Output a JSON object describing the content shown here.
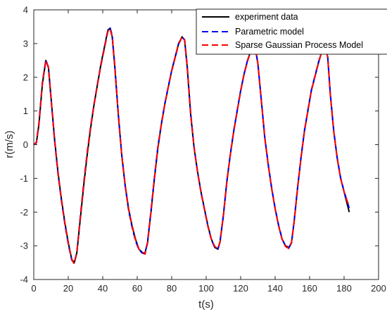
{
  "chart_data": {
    "type": "line",
    "title": "",
    "xlabel": "t(s)",
    "ylabel": "r(m/s)",
    "xlim": [
      0,
      200
    ],
    "ylim": [
      -4,
      4
    ],
    "xticks": [
      0,
      20,
      40,
      60,
      80,
      100,
      120,
      140,
      160,
      180,
      200
    ],
    "yticks": [
      -4,
      -3,
      -2,
      -1,
      0,
      1,
      2,
      3,
      4
    ],
    "grid": false,
    "legend_position": "top-right",
    "series": [
      {
        "name": "experiment data",
        "color": "#000000",
        "style": "solid",
        "points": [
          [
            0,
            0
          ],
          [
            1.5,
            0.05
          ],
          [
            3,
            0.6
          ],
          [
            5,
            1.8
          ],
          [
            7,
            2.5
          ],
          [
            8.5,
            2.3
          ],
          [
            10,
            1.4
          ],
          [
            12,
            0.2
          ],
          [
            14,
            -0.8
          ],
          [
            16,
            -1.6
          ],
          [
            18,
            -2.3
          ],
          [
            20,
            -2.9
          ],
          [
            22,
            -3.4
          ],
          [
            23.5,
            -3.5
          ],
          [
            25,
            -3.2
          ],
          [
            27,
            -2.2
          ],
          [
            29,
            -1.2
          ],
          [
            31,
            -0.3
          ],
          [
            33,
            0.5
          ],
          [
            35,
            1.2
          ],
          [
            37,
            1.8
          ],
          [
            39,
            2.4
          ],
          [
            41,
            2.9
          ],
          [
            43,
            3.4
          ],
          [
            44.2,
            3.45
          ],
          [
            45.5,
            3.2
          ],
          [
            47,
            2.3
          ],
          [
            49,
            0.9
          ],
          [
            51,
            -0.3
          ],
          [
            53,
            -1.2
          ],
          [
            55,
            -1.9
          ],
          [
            57,
            -2.4
          ],
          [
            59,
            -2.8
          ],
          [
            61,
            -3.1
          ],
          [
            63,
            -3.2
          ],
          [
            64.5,
            -3.22
          ],
          [
            66,
            -2.9
          ],
          [
            68,
            -2
          ],
          [
            70,
            -1
          ],
          [
            72,
            -0.1
          ],
          [
            74,
            0.6
          ],
          [
            76,
            1.2
          ],
          [
            78,
            1.7
          ],
          [
            80,
            2.2
          ],
          [
            82,
            2.6
          ],
          [
            84,
            3.0
          ],
          [
            86,
            3.2
          ],
          [
            87.5,
            3.1
          ],
          [
            89,
            2.3
          ],
          [
            91,
            0.9
          ],
          [
            93,
            -0.1
          ],
          [
            95,
            -0.8
          ],
          [
            97,
            -1.4
          ],
          [
            99,
            -1.9
          ],
          [
            101,
            -2.4
          ],
          [
            103,
            -2.8
          ],
          [
            105,
            -3.05
          ],
          [
            106.8,
            -3.1
          ],
          [
            108,
            -2.9
          ],
          [
            110,
            -2.1
          ],
          [
            112,
            -1.1
          ],
          [
            114,
            -0.3
          ],
          [
            116,
            0.4
          ],
          [
            118,
            1.0
          ],
          [
            120,
            1.6
          ],
          [
            122,
            2.1
          ],
          [
            124,
            2.5
          ],
          [
            126,
            2.8
          ],
          [
            127.5,
            2.9
          ],
          [
            128.5,
            2.85
          ],
          [
            130,
            2.4
          ],
          [
            132,
            1.3
          ],
          [
            134,
            0.2
          ],
          [
            136,
            -0.6
          ],
          [
            138,
            -1.3
          ],
          [
            140,
            -1.9
          ],
          [
            142,
            -2.4
          ],
          [
            144,
            -2.8
          ],
          [
            146,
            -3.0
          ],
          [
            148,
            -3.05
          ],
          [
            149.5,
            -2.9
          ],
          [
            151,
            -2.3
          ],
          [
            153,
            -1.3
          ],
          [
            155,
            -0.4
          ],
          [
            157,
            0.4
          ],
          [
            159,
            1.0
          ],
          [
            161,
            1.6
          ],
          [
            163,
            2.0
          ],
          [
            165,
            2.4
          ],
          [
            167,
            2.75
          ],
          [
            169,
            2.9
          ],
          [
            170.5,
            2.6
          ],
          [
            172,
            1.5
          ],
          [
            174,
            0.4
          ],
          [
            176,
            -0.4
          ],
          [
            178,
            -1.0
          ],
          [
            180,
            -1.4
          ],
          [
            182,
            -1.8
          ],
          [
            183,
            -2.0
          ]
        ]
      },
      {
        "name": "Parametric model",
        "color": "#0000ff",
        "style": "dashed",
        "points": [
          [
            0,
            0
          ],
          [
            1.5,
            0.07
          ],
          [
            3,
            0.65
          ],
          [
            5,
            1.85
          ],
          [
            7,
            2.52
          ],
          [
            8.5,
            2.28
          ],
          [
            10,
            1.38
          ],
          [
            12,
            0.15
          ],
          [
            14,
            -0.85
          ],
          [
            16,
            -1.65
          ],
          [
            18,
            -2.35
          ],
          [
            20,
            -2.95
          ],
          [
            22,
            -3.42
          ],
          [
            23.5,
            -3.52
          ],
          [
            25,
            -3.18
          ],
          [
            27,
            -2.12
          ],
          [
            29,
            -1.12
          ],
          [
            31,
            -0.22
          ],
          [
            33,
            0.55
          ],
          [
            35,
            1.22
          ],
          [
            37,
            1.82
          ],
          [
            39,
            2.38
          ],
          [
            41,
            2.88
          ],
          [
            43,
            3.38
          ],
          [
            44.2,
            3.48
          ],
          [
            45.5,
            3.25
          ],
          [
            47,
            2.35
          ],
          [
            49,
            0.95
          ],
          [
            51,
            -0.28
          ],
          [
            53,
            -1.22
          ],
          [
            55,
            -1.95
          ],
          [
            57,
            -2.45
          ],
          [
            59,
            -2.85
          ],
          [
            61,
            -3.12
          ],
          [
            63,
            -3.22
          ],
          [
            64.5,
            -3.24
          ],
          [
            66,
            -2.88
          ],
          [
            68,
            -1.95
          ],
          [
            70,
            -0.95
          ],
          [
            72,
            -0.05
          ],
          [
            74,
            0.62
          ],
          [
            76,
            1.22
          ],
          [
            78,
            1.72
          ],
          [
            80,
            2.2
          ],
          [
            82,
            2.58
          ],
          [
            84,
            2.98
          ],
          [
            86,
            3.18
          ],
          [
            87.5,
            3.12
          ],
          [
            89,
            2.35
          ],
          [
            91,
            0.95
          ],
          [
            93,
            -0.08
          ],
          [
            95,
            -0.8
          ],
          [
            97,
            -1.42
          ],
          [
            99,
            -1.92
          ],
          [
            101,
            -2.42
          ],
          [
            103,
            -2.82
          ],
          [
            105,
            -3.05
          ],
          [
            106.8,
            -3.1
          ],
          [
            108,
            -2.88
          ],
          [
            110,
            -2.08
          ],
          [
            112,
            -1.08
          ],
          [
            114,
            -0.28
          ],
          [
            116,
            0.42
          ],
          [
            118,
            1.02
          ],
          [
            120,
            1.6
          ],
          [
            122,
            2.1
          ],
          [
            124,
            2.5
          ],
          [
            126,
            2.8
          ],
          [
            127.5,
            2.92
          ],
          [
            128.5,
            2.88
          ],
          [
            130,
            2.42
          ],
          [
            132,
            1.32
          ],
          [
            134,
            0.22
          ],
          [
            136,
            -0.58
          ],
          [
            138,
            -1.28
          ],
          [
            140,
            -1.88
          ],
          [
            142,
            -2.38
          ],
          [
            144,
            -2.78
          ],
          [
            146,
            -3.0
          ],
          [
            148,
            -3.06
          ],
          [
            149.5,
            -2.92
          ],
          [
            151,
            -2.28
          ],
          [
            153,
            -1.28
          ],
          [
            155,
            -0.38
          ],
          [
            157,
            0.42
          ],
          [
            159,
            1.02
          ],
          [
            161,
            1.62
          ],
          [
            163,
            2.02
          ],
          [
            165,
            2.42
          ],
          [
            167,
            2.78
          ],
          [
            169,
            2.92
          ],
          [
            170.5,
            2.62
          ],
          [
            172,
            1.52
          ],
          [
            174,
            0.42
          ],
          [
            176,
            -0.38
          ],
          [
            178,
            -0.98
          ],
          [
            180,
            -1.38
          ],
          [
            182,
            -1.72
          ],
          [
            183,
            -1.88
          ]
        ]
      },
      {
        "name": "Sparse Gaussian Process Model",
        "color": "#ff0000",
        "style": "dashed",
        "points": [
          [
            0,
            0
          ],
          [
            1.5,
            0.06
          ],
          [
            3,
            0.62
          ],
          [
            5,
            1.82
          ],
          [
            7,
            2.5
          ],
          [
            8.5,
            2.3
          ],
          [
            10,
            1.4
          ],
          [
            12,
            0.18
          ],
          [
            14,
            -0.82
          ],
          [
            16,
            -1.62
          ],
          [
            18,
            -2.32
          ],
          [
            20,
            -2.92
          ],
          [
            22,
            -3.4
          ],
          [
            23.5,
            -3.54
          ],
          [
            25,
            -3.2
          ],
          [
            27,
            -2.15
          ],
          [
            29,
            -1.15
          ],
          [
            31,
            -0.25
          ],
          [
            33,
            0.52
          ],
          [
            35,
            1.2
          ],
          [
            37,
            1.8
          ],
          [
            39,
            2.36
          ],
          [
            41,
            2.86
          ],
          [
            43,
            3.36
          ],
          [
            44.2,
            3.44
          ],
          [
            45.5,
            3.22
          ],
          [
            47,
            2.32
          ],
          [
            49,
            0.92
          ],
          [
            51,
            -0.3
          ],
          [
            53,
            -1.2
          ],
          [
            55,
            -1.92
          ],
          [
            57,
            -2.42
          ],
          [
            59,
            -2.82
          ],
          [
            61,
            -3.1
          ],
          [
            63,
            -3.2
          ],
          [
            64.5,
            -3.25
          ],
          [
            66,
            -2.92
          ],
          [
            68,
            -1.98
          ],
          [
            70,
            -0.98
          ],
          [
            72,
            -0.08
          ],
          [
            74,
            0.6
          ],
          [
            76,
            1.2
          ],
          [
            78,
            1.7
          ],
          [
            80,
            2.18
          ],
          [
            82,
            2.58
          ],
          [
            84,
            2.98
          ],
          [
            86,
            3.2
          ],
          [
            87.5,
            3.1
          ],
          [
            89,
            2.32
          ],
          [
            91,
            0.92
          ],
          [
            93,
            -0.1
          ],
          [
            95,
            -0.82
          ],
          [
            97,
            -1.42
          ],
          [
            99,
            -1.92
          ],
          [
            101,
            -2.42
          ],
          [
            103,
            -2.8
          ],
          [
            105,
            -3.02
          ],
          [
            106.8,
            -3.08
          ],
          [
            108,
            -2.9
          ],
          [
            110,
            -2.1
          ],
          [
            112,
            -1.1
          ],
          [
            114,
            -0.3
          ],
          [
            116,
            0.4
          ],
          [
            118,
            1.0
          ],
          [
            120,
            1.58
          ],
          [
            122,
            2.08
          ],
          [
            124,
            2.48
          ],
          [
            126,
            2.78
          ],
          [
            127.5,
            2.9
          ],
          [
            128.5,
            2.86
          ],
          [
            130,
            2.42
          ],
          [
            132,
            1.32
          ],
          [
            134,
            0.22
          ],
          [
            136,
            -0.6
          ],
          [
            138,
            -1.3
          ],
          [
            140,
            -1.9
          ],
          [
            142,
            -2.4
          ],
          [
            144,
            -2.8
          ],
          [
            146,
            -3.02
          ],
          [
            148,
            -3.08
          ],
          [
            149.5,
            -2.9
          ],
          [
            151,
            -2.3
          ],
          [
            153,
            -1.3
          ],
          [
            155,
            -0.4
          ],
          [
            157,
            0.4
          ],
          [
            159,
            1.0
          ],
          [
            161,
            1.6
          ],
          [
            163,
            2.0
          ],
          [
            165,
            2.4
          ],
          [
            167,
            2.76
          ],
          [
            169,
            2.9
          ],
          [
            170.5,
            2.6
          ],
          [
            172,
            1.5
          ],
          [
            174,
            0.4
          ],
          [
            176,
            -0.4
          ],
          [
            178,
            -1.0
          ],
          [
            180,
            -1.4
          ],
          [
            182,
            -1.7
          ],
          [
            183,
            -1.8
          ]
        ]
      }
    ]
  }
}
